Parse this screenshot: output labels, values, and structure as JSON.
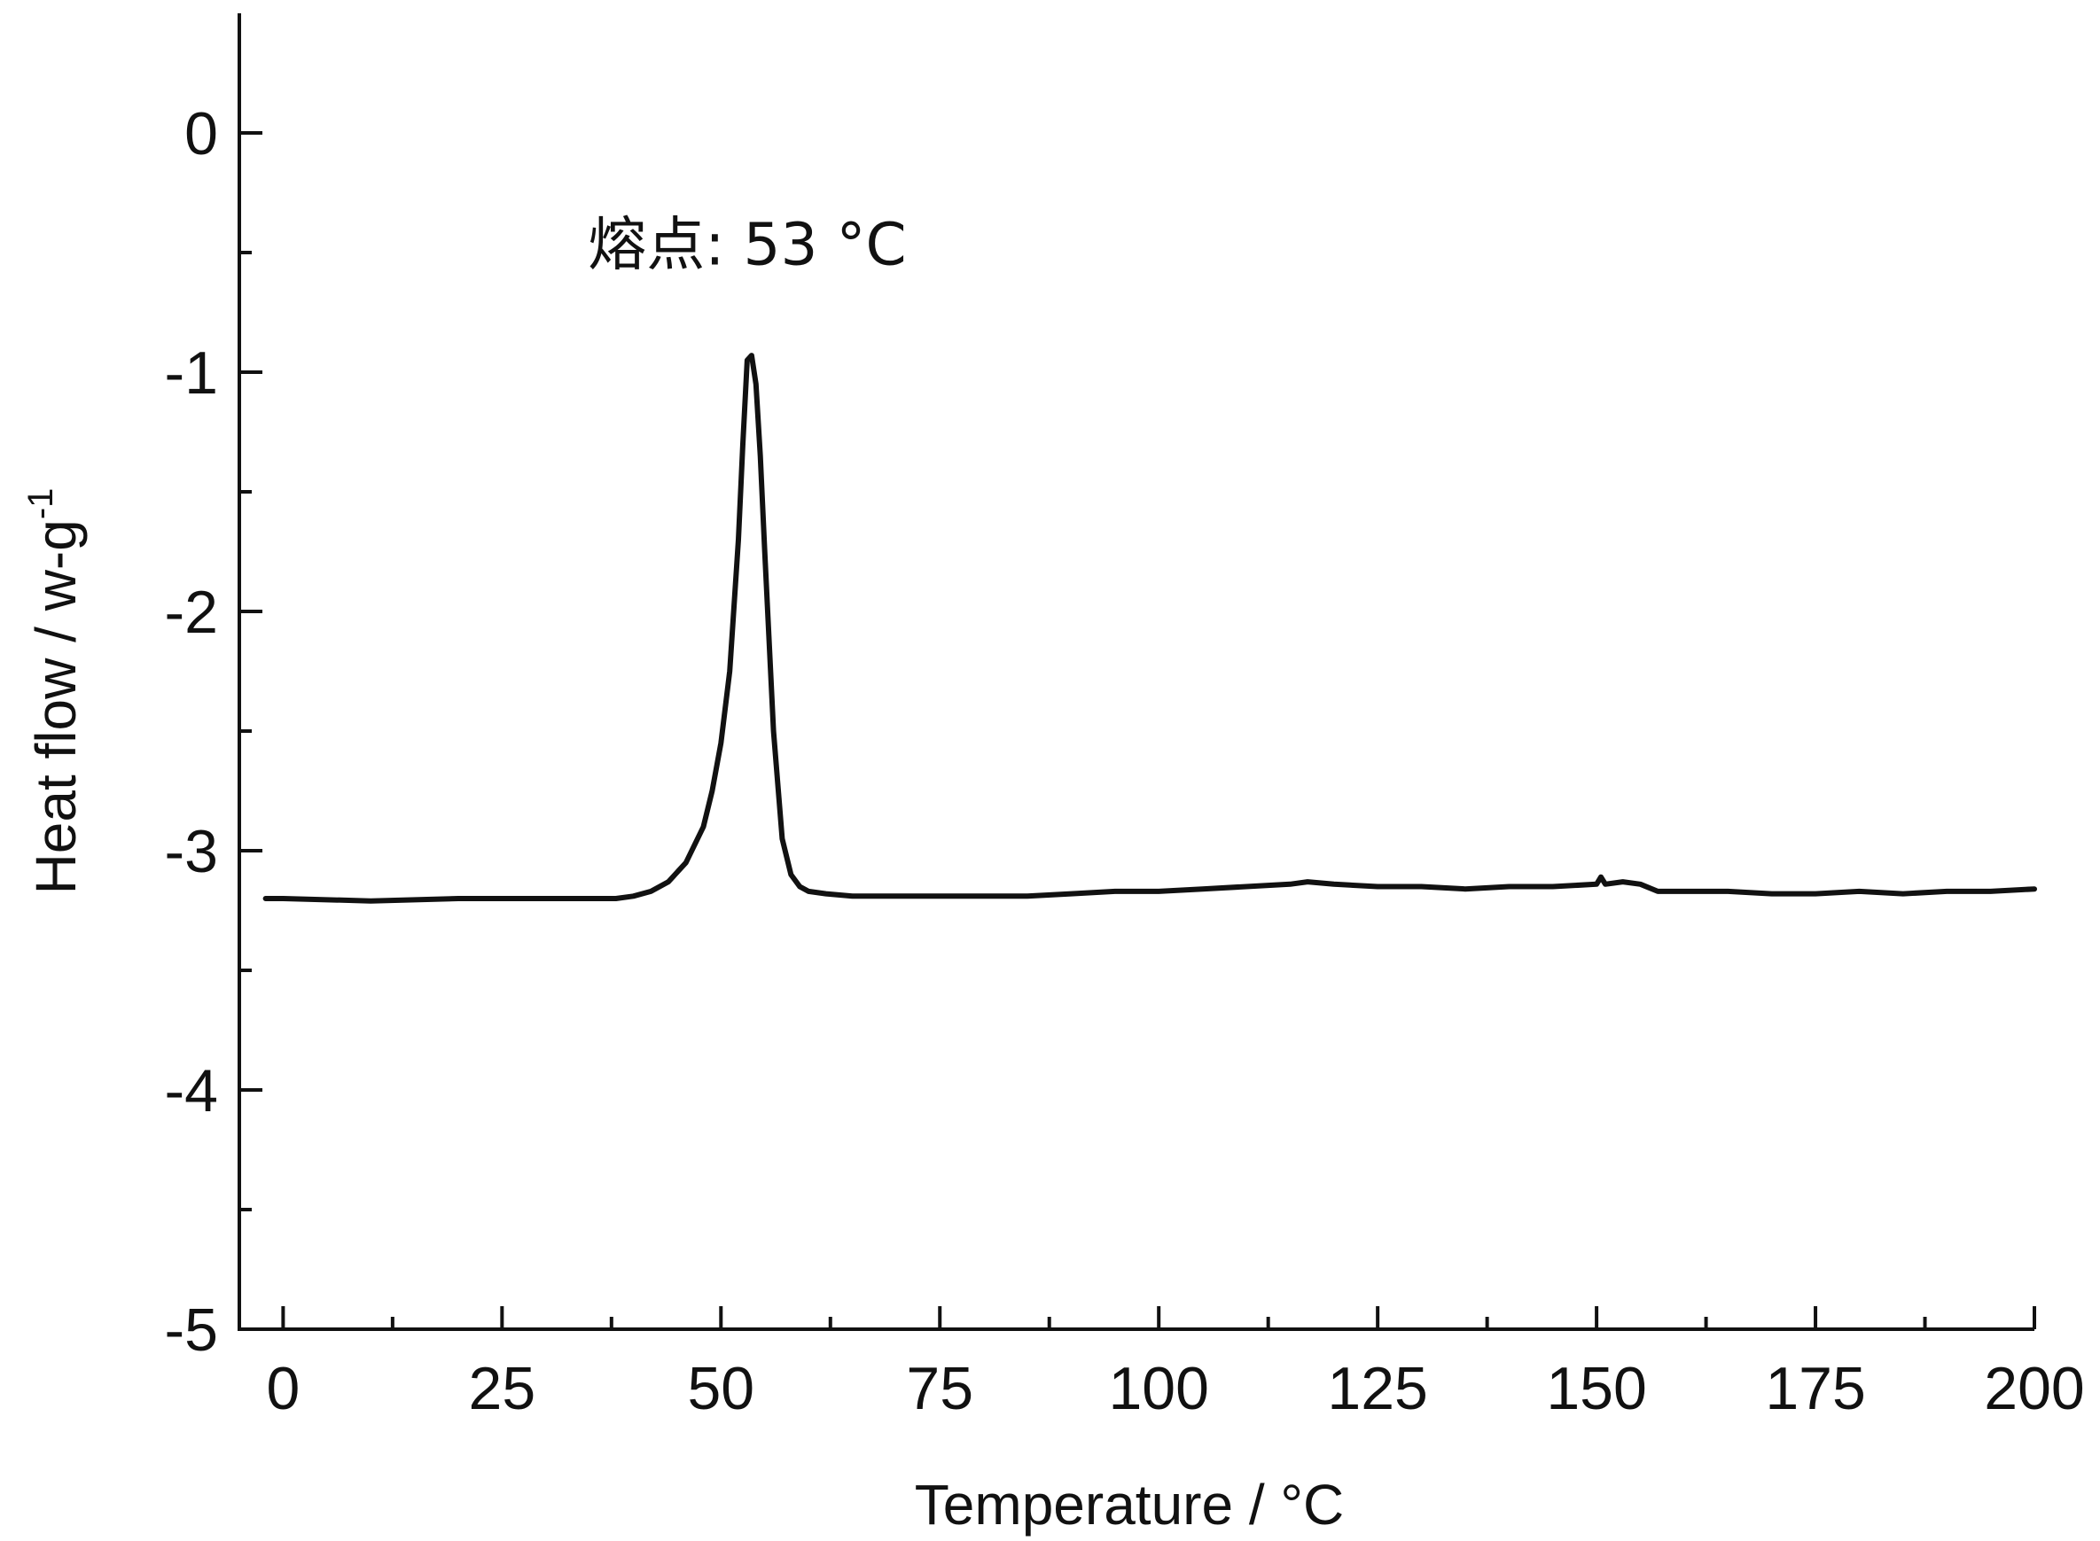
{
  "chart_data": {
    "type": "line",
    "xlabel": "Temperature / °C",
    "ylabel_main": "Heat flow / w-g",
    "ylabel_superscript": "-1",
    "xlim": [
      -5,
      200
    ],
    "ylim": [
      -5,
      0.5
    ],
    "x_ticks": [
      0,
      25,
      50,
      75,
      100,
      125,
      150,
      175,
      200
    ],
    "x_tick_labels": [
      "0",
      "25",
      "50",
      "75",
      "100",
      "125",
      "150",
      "175",
      "200"
    ],
    "x_minor_step": 12.5,
    "y_ticks": [
      0,
      -1,
      -2,
      -3,
      -4,
      -5
    ],
    "y_tick_labels": [
      "0",
      "-1",
      "-2",
      "-3",
      "-4",
      "-5"
    ],
    "y_minor_step": 0.5,
    "grid": false,
    "annotation": {
      "text": "熔点: 53 °C",
      "x": 53,
      "y": -0.55
    },
    "series": [
      {
        "x": [
          -2,
          0,
          10,
          20,
          30,
          35,
          38,
          40,
          42,
          44,
          46,
          48,
          49,
          50,
          51,
          52,
          52.5,
          53,
          53.5,
          54,
          54.5,
          55,
          56,
          57,
          58,
          59,
          60,
          62,
          65,
          70,
          75,
          80,
          85,
          90,
          95,
          100,
          105,
          110,
          115,
          117,
          120,
          125,
          130,
          135,
          140,
          145,
          150,
          150.5,
          151,
          153,
          155,
          157,
          160,
          165,
          170,
          175,
          180,
          185,
          190,
          195,
          200
        ],
        "y": [
          -3.2,
          -3.2,
          -3.21,
          -3.2,
          -3.2,
          -3.2,
          -3.2,
          -3.19,
          -3.17,
          -3.13,
          -3.05,
          -2.9,
          -2.75,
          -2.55,
          -2.25,
          -1.7,
          -1.3,
          -0.95,
          -0.93,
          -1.05,
          -1.35,
          -1.75,
          -2.5,
          -2.95,
          -3.1,
          -3.15,
          -3.17,
          -3.18,
          -3.19,
          -3.19,
          -3.19,
          -3.19,
          -3.19,
          -3.18,
          -3.17,
          -3.17,
          -3.16,
          -3.15,
          -3.14,
          -3.13,
          -3.14,
          -3.15,
          -3.15,
          -3.16,
          -3.15,
          -3.15,
          -3.14,
          -3.11,
          -3.14,
          -3.13,
          -3.14,
          -3.17,
          -3.17,
          -3.17,
          -3.18,
          -3.18,
          -3.17,
          -3.18,
          -3.17,
          -3.17,
          -3.16
        ]
      }
    ]
  }
}
